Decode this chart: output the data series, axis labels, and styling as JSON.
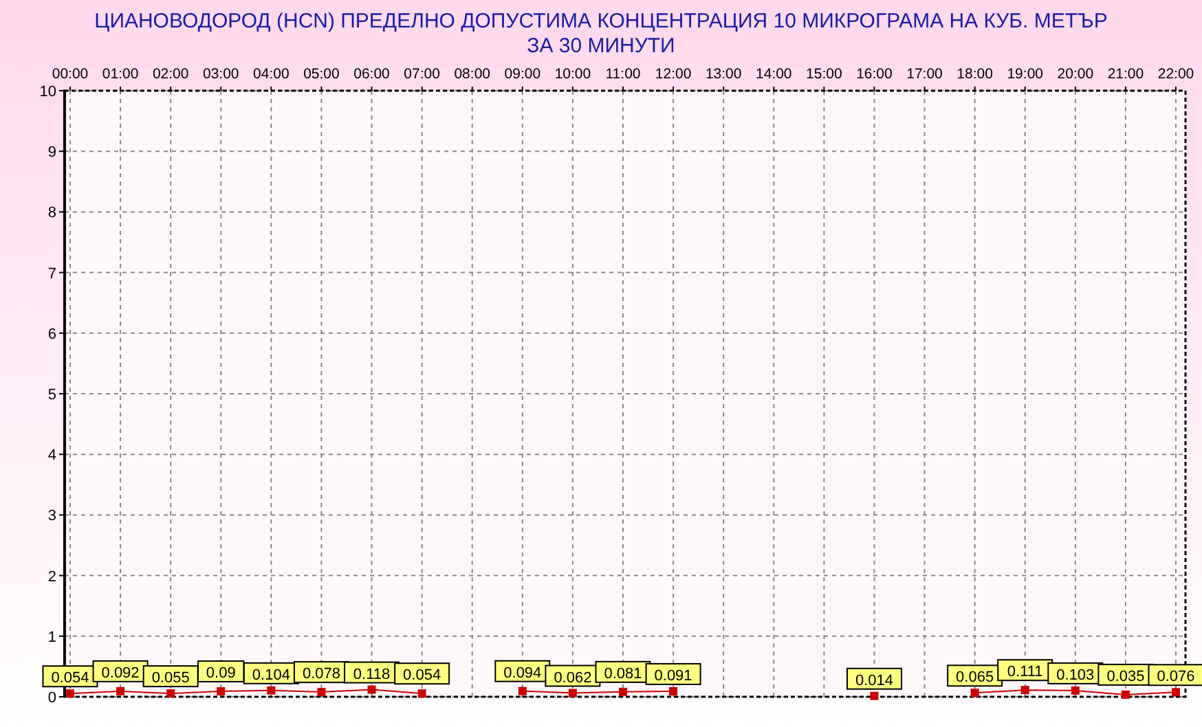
{
  "chart_data": {
    "type": "line",
    "title": "ЦИАНОВОДОРОД     (HCN)    ПРЕДЕЛНО ДОПУСТИМА КОНЦЕНТРАЦИЯ 10 МИКРОГРАМА  НА КУБ. МЕТЪР\nЗА 30 МИНУТИ",
    "categories": [
      "00:00",
      "01:00",
      "02:00",
      "03:00",
      "04:00",
      "05:00",
      "06:00",
      "07:00",
      "08:00",
      "09:00",
      "10:00",
      "11:00",
      "12:00",
      "13:00",
      "14:00",
      "15:00",
      "16:00",
      "17:00",
      "18:00",
      "19:00",
      "20:00",
      "21:00",
      "22:00"
    ],
    "series": [
      {
        "color": "#cc0000",
        "values": [
          0.054,
          0.092,
          0.055,
          0.09,
          0.104,
          0.078,
          0.118,
          0.054,
          null,
          0.094,
          0.062,
          0.081,
          0.091,
          null,
          null,
          null,
          0.014,
          null,
          0.065,
          0.111,
          0.103,
          0.035,
          0.076
        ]
      }
    ],
    "ylim": [
      0,
      10
    ],
    "yticks": [
      0,
      1,
      2,
      3,
      4,
      5,
      6,
      7,
      8,
      9,
      10
    ],
    "grid": true,
    "marker": "square",
    "data_labels": true
  }
}
